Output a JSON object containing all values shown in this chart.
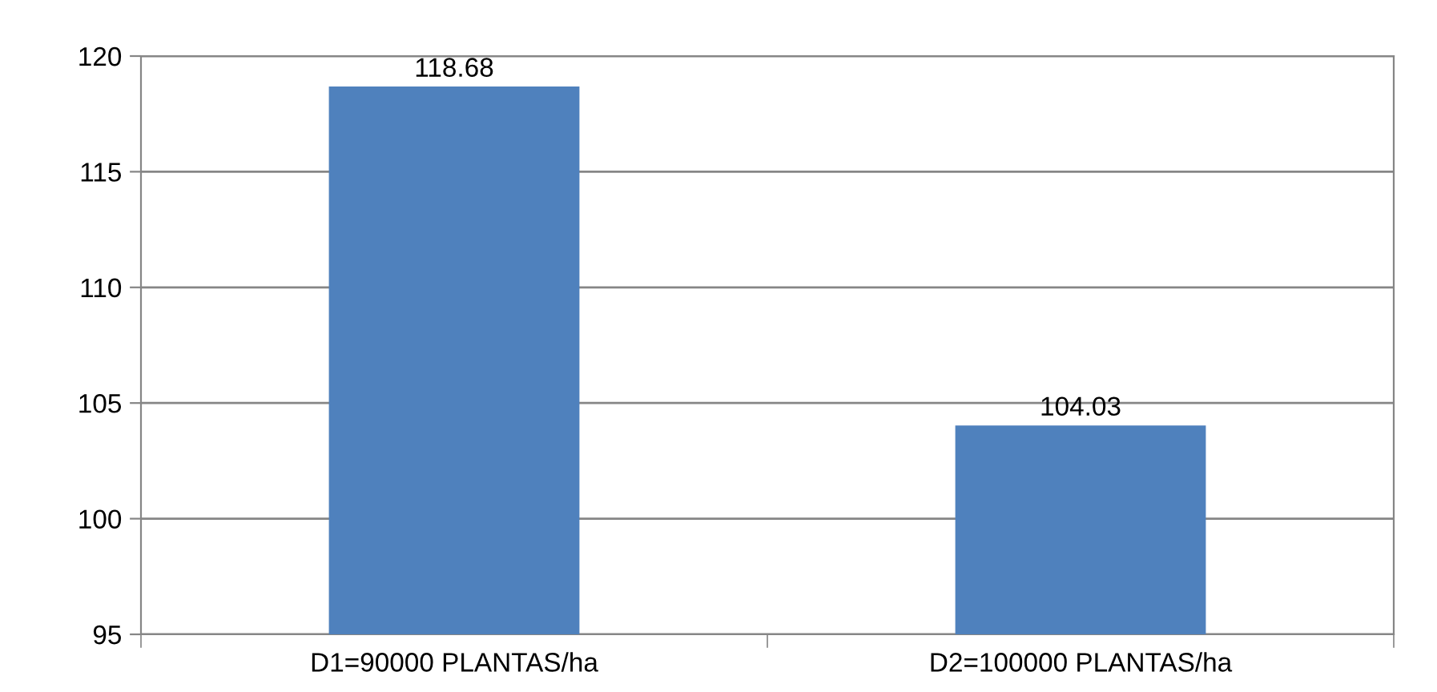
{
  "chart_data": {
    "type": "bar",
    "categories": [
      "D1=90000 PLANTAS/ha",
      "D2=100000 PLANTAS/ha"
    ],
    "values": [
      118.68,
      104.03
    ],
    "color": "#4f81bd",
    "ylim": [
      95,
      120
    ],
    "yticks": [
      95,
      100,
      105,
      110,
      115,
      120
    ],
    "grid": "y",
    "data_labels": true,
    "legend": false
  }
}
